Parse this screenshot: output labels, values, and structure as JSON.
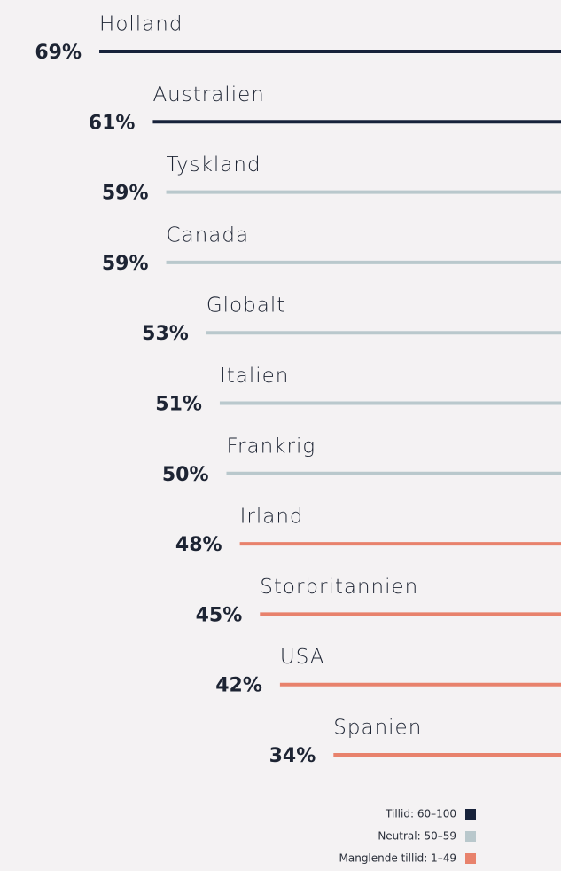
{
  "chart_data": {
    "type": "bar",
    "categories": [
      "Holland",
      "Australien",
      "Tyskland",
      "Canada",
      "Globalt",
      "Italien",
      "Frankrig",
      "Irland",
      "Storbritannien",
      "USA",
      "Spanien"
    ],
    "values": [
      69,
      61,
      59,
      59,
      53,
      51,
      50,
      48,
      45,
      42,
      34
    ],
    "value_labels": [
      "69%",
      "61%",
      "59%",
      "59%",
      "53%",
      "51%",
      "50%",
      "48%",
      "45%",
      "42%",
      "34%"
    ],
    "colors": [
      "#17223a",
      "#17223a",
      "#b9c8cc",
      "#b9c8cc",
      "#b9c8cc",
      "#b9c8cc",
      "#b9c8cc",
      "#e8826c",
      "#e8826c",
      "#e8826c",
      "#e8826c"
    ],
    "legend": [
      {
        "label": "Tillid: 60–100",
        "color": "#17223a"
      },
      {
        "label": "Neutral: 50–59",
        "color": "#b9c8cc"
      },
      {
        "label": "Manglende tillid: 1–49",
        "color": "#e8826c"
      }
    ]
  }
}
